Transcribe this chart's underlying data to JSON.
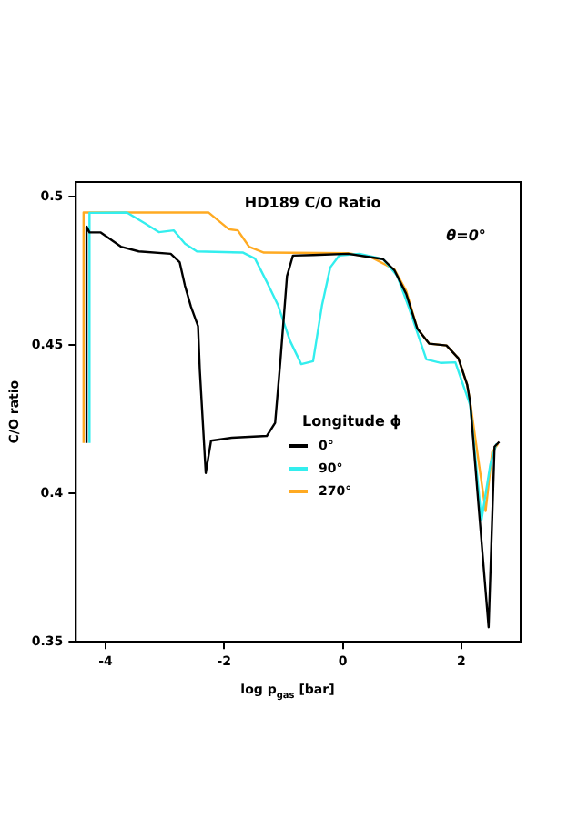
{
  "chart_data": {
    "type": "line",
    "title": "HD189 C/O Ratio",
    "xlabel": "log p$_{gas}$ [bar]",
    "ylabel": "C/O ratio",
    "legend_title": "Longitude ϕ",
    "legend": "right",
    "grid": false,
    "marker": "none",
    "line_style": "solid",
    "annotations": [
      "θ=0°"
    ],
    "xlim": [
      -4.5,
      3
    ],
    "xticks": [
      -4,
      -2,
      0,
      2
    ],
    "ylim": [
      0.35,
      0.505
    ],
    "yticks": [
      0.35,
      0.4,
      0.45,
      0.5
    ],
    "series": [
      {
        "name": "0°",
        "color": "#000000",
        "x": [
          -4.32,
          -4.32,
          -4.27,
          -4.08,
          -3.74,
          -3.44,
          -2.9,
          -2.75,
          -2.66,
          -2.56,
          -2.44,
          -2.41,
          -2.31,
          -2.22,
          -1.87,
          -1.28,
          -1.14,
          -1.05,
          -0.94,
          -0.84,
          -0.5,
          0.09,
          0.48,
          0.68,
          0.87,
          1.07,
          1.26,
          1.46,
          1.75,
          1.95,
          2.1,
          2.15,
          2.29,
          2.46,
          2.56,
          2.64
        ],
        "values": [
          0.417,
          0.49,
          0.488,
          0.488,
          0.4832,
          0.4816,
          0.4808,
          0.478,
          0.47,
          0.463,
          0.4564,
          0.4416,
          0.4069,
          0.4178,
          0.4188,
          0.4194,
          0.4238,
          0.445,
          0.4733,
          0.4802,
          0.4804,
          0.4808,
          0.4796,
          0.479,
          0.4753,
          0.4673,
          0.4555,
          0.4505,
          0.4499,
          0.4456,
          0.4366,
          0.4307,
          0.396,
          0.3549,
          0.4158,
          0.4174
        ]
      },
      {
        "name": "90°",
        "color": "#33eeee",
        "x": [
          -4.27,
          -4.27,
          -3.64,
          -3.34,
          -3.1,
          -2.85,
          -2.66,
          -2.46,
          -1.68,
          -1.48,
          -1.28,
          -1.09,
          -0.89,
          -0.7,
          -0.5,
          -0.35,
          -0.21,
          -0.06,
          0.28,
          0.68,
          0.92,
          1.12,
          1.41,
          1.66,
          1.9,
          2.15,
          2.34,
          2.49,
          2.59
        ],
        "values": [
          0.417,
          0.4946,
          0.4947,
          0.4911,
          0.4881,
          0.4887,
          0.4842,
          0.4816,
          0.4812,
          0.4792,
          0.4713,
          0.4634,
          0.4515,
          0.4436,
          0.4446,
          0.4634,
          0.4762,
          0.4802,
          0.4808,
          0.479,
          0.4733,
          0.4624,
          0.4452,
          0.444,
          0.4442,
          0.4297,
          0.3911,
          0.4099,
          0.4168
        ]
      },
      {
        "name": "270°",
        "color": "#ffaa22",
        "x": [
          -4.37,
          -4.37,
          -2.26,
          -1.92,
          -1.77,
          -1.58,
          -1.33,
          0.09,
          0.48,
          0.87,
          1.07,
          1.26,
          1.46,
          1.75,
          1.95,
          2.1,
          2.15,
          2.41,
          2.52,
          2.62
        ],
        "values": [
          0.417,
          0.4947,
          0.4947,
          0.4891,
          0.4887,
          0.4832,
          0.4812,
          0.481,
          0.4796,
          0.4756,
          0.4683,
          0.4555,
          0.4505,
          0.4499,
          0.4456,
          0.4366,
          0.4307,
          0.3941,
          0.4139,
          0.4168
        ]
      }
    ]
  }
}
